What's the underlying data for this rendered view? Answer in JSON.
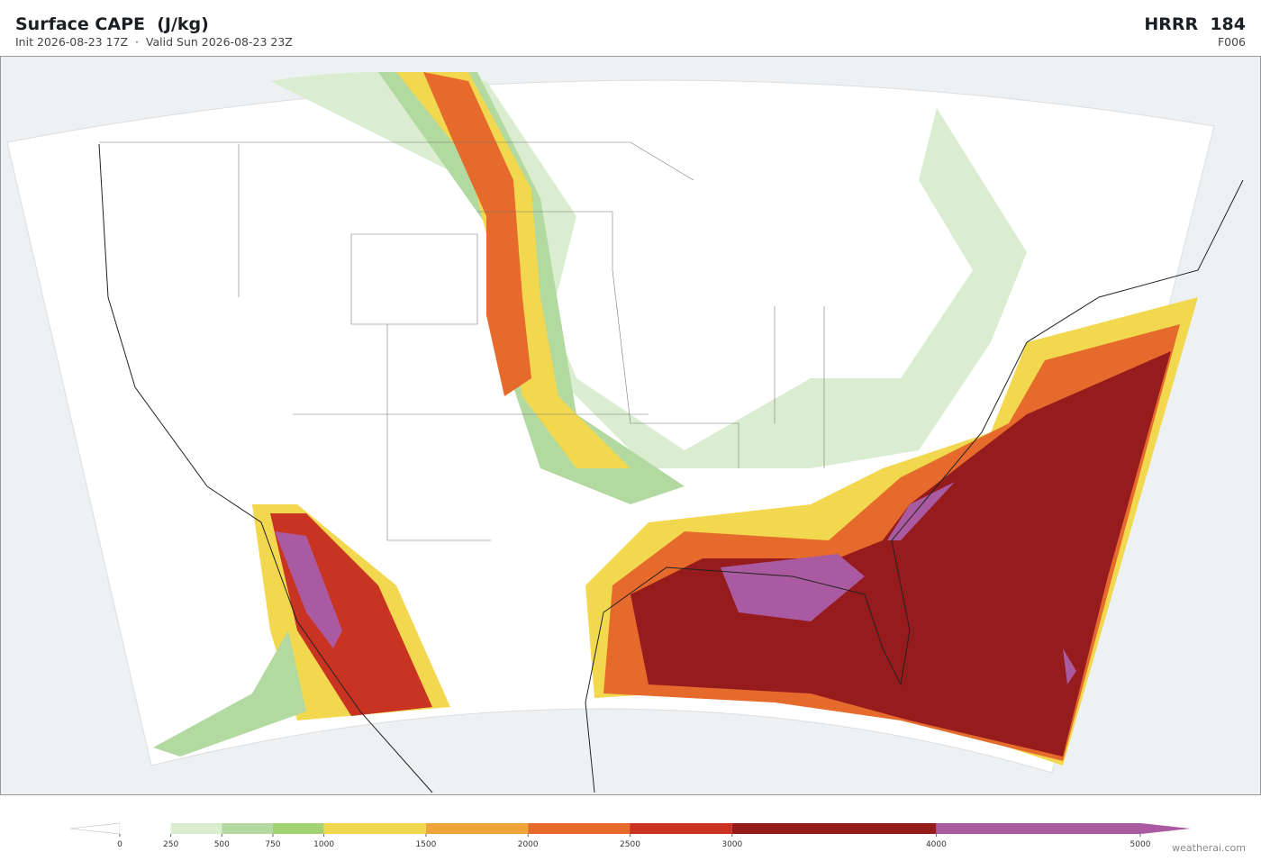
{
  "header": {
    "title": "Surface CAPE  (J/kg)",
    "subtitle": "Init 2026-08-23 17Z  ·  Valid Sun 2026-08-23 23Z",
    "model": "HRRR  184",
    "forecast_hour": "F006"
  },
  "colorbar": {
    "ticks": [
      0,
      250,
      500,
      750,
      1000,
      1500,
      2000,
      2500,
      3000,
      4000,
      5000
    ],
    "colors": [
      "#ffffff",
      "#dbedd0",
      "#b2d9a0",
      "#a3d275",
      "#f2d84e",
      "#efa53a",
      "#e56a2c",
      "#c93322",
      "#951b1c",
      "#aa5aa0"
    ]
  },
  "watermark": "weatherai.com"
}
